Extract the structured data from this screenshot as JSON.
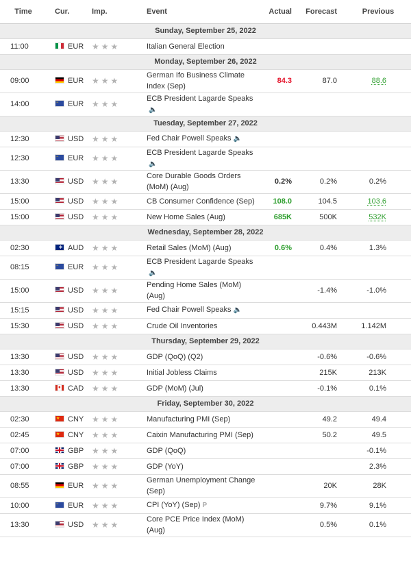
{
  "headers": {
    "time": "Time",
    "currency": "Cur.",
    "importance": "Imp.",
    "event": "Event",
    "actual": "Actual",
    "forecast": "Forecast",
    "previous": "Previous"
  },
  "colors": {
    "positive": "#2e9e2e",
    "negative": "#e4132a",
    "day_header_bg": "#ededed"
  },
  "importance_glyphs": "★★★",
  "speech_icon": "🔈",
  "preliminary_icon": "P",
  "days": [
    {
      "date": "Sunday, September 25, 2022",
      "events": [
        {
          "time": "11:00",
          "flag": "it",
          "currency": "EUR",
          "event": "Italian General Election",
          "actual": "",
          "forecast": "",
          "previous": ""
        }
      ]
    },
    {
      "date": "Monday, September 26, 2022",
      "events": [
        {
          "time": "09:00",
          "flag": "de",
          "currency": "EUR",
          "event": "German Ifo Business Climate Index (Sep)",
          "actual": "84.3",
          "actual_color": "red",
          "forecast": "87.0",
          "previous": "88.6",
          "previous_color": "green",
          "previous_revised": true
        },
        {
          "time": "14:00",
          "flag": "eu",
          "currency": "EUR",
          "event": "ECB President Lagarde Speaks",
          "speech": true,
          "actual": "",
          "forecast": "",
          "previous": ""
        }
      ]
    },
    {
      "date": "Tuesday, September 27, 2022",
      "events": [
        {
          "time": "12:30",
          "flag": "us",
          "currency": "USD",
          "event": "Fed Chair Powell Speaks",
          "speech": true,
          "actual": "",
          "forecast": "",
          "previous": ""
        },
        {
          "time": "12:30",
          "flag": "eu",
          "currency": "EUR",
          "event": "ECB President Lagarde Speaks",
          "speech": true,
          "actual": "",
          "forecast": "",
          "previous": ""
        },
        {
          "time": "13:30",
          "flag": "us",
          "currency": "USD",
          "event": "Core Durable Goods Orders (MoM) (Aug)",
          "actual": "0.2%",
          "forecast": "0.2%",
          "previous": "0.2%"
        },
        {
          "time": "15:00",
          "flag": "us",
          "currency": "USD",
          "event": "CB Consumer Confidence (Sep)",
          "actual": "108.0",
          "actual_color": "green",
          "forecast": "104.5",
          "previous": "103.6",
          "previous_color": "green",
          "previous_revised": true
        },
        {
          "time": "15:00",
          "flag": "us",
          "currency": "USD",
          "event": "New Home Sales (Aug)",
          "actual": "685K",
          "actual_color": "green",
          "forecast": "500K",
          "previous": "532K",
          "previous_color": "green",
          "previous_revised": true
        }
      ]
    },
    {
      "date": "Wednesday, September 28, 2022",
      "events": [
        {
          "time": "02:30",
          "flag": "au",
          "currency": "AUD",
          "event": "Retail Sales (MoM) (Aug)",
          "actual": "0.6%",
          "actual_color": "green",
          "forecast": "0.4%",
          "previous": "1.3%"
        },
        {
          "time": "08:15",
          "flag": "eu",
          "currency": "EUR",
          "event": "ECB President Lagarde Speaks",
          "speech": true,
          "actual": "",
          "forecast": "",
          "previous": ""
        },
        {
          "time": "15:00",
          "flag": "us",
          "currency": "USD",
          "event": "Pending Home Sales (MoM) (Aug)",
          "actual": "",
          "forecast": "-1.4%",
          "previous": "-1.0%"
        },
        {
          "time": "15:15",
          "flag": "us",
          "currency": "USD",
          "event": "Fed Chair Powell Speaks",
          "speech": true,
          "actual": "",
          "forecast": "",
          "previous": ""
        },
        {
          "time": "15:30",
          "flag": "us",
          "currency": "USD",
          "event": "Crude Oil Inventories",
          "actual": "",
          "forecast": "0.443M",
          "previous": "1.142M"
        }
      ]
    },
    {
      "date": "Thursday, September 29, 2022",
      "events": [
        {
          "time": "13:30",
          "flag": "us",
          "currency": "USD",
          "event": "GDP (QoQ) (Q2)",
          "actual": "",
          "forecast": "-0.6%",
          "previous": "-0.6%"
        },
        {
          "time": "13:30",
          "flag": "us",
          "currency": "USD",
          "event": "Initial Jobless Claims",
          "actual": "",
          "forecast": "215K",
          "previous": "213K"
        },
        {
          "time": "13:30",
          "flag": "ca",
          "currency": "CAD",
          "event": "GDP (MoM) (Jul)",
          "actual": "",
          "forecast": "-0.1%",
          "previous": "0.1%"
        }
      ]
    },
    {
      "date": "Friday, September 30, 2022",
      "events": [
        {
          "time": "02:30",
          "flag": "cn",
          "currency": "CNY",
          "event": "Manufacturing PMI (Sep)",
          "actual": "",
          "forecast": "49.2",
          "previous": "49.4"
        },
        {
          "time": "02:45",
          "flag": "cn",
          "currency": "CNY",
          "event": "Caixin Manufacturing PMI (Sep)",
          "actual": "",
          "forecast": "50.2",
          "previous": "49.5"
        },
        {
          "time": "07:00",
          "flag": "gb",
          "currency": "GBP",
          "event": "GDP (QoQ)",
          "actual": "",
          "forecast": "",
          "previous": "-0.1%"
        },
        {
          "time": "07:00",
          "flag": "gb",
          "currency": "GBP",
          "event": "GDP (YoY)",
          "actual": "",
          "forecast": "",
          "previous": "2.3%"
        },
        {
          "time": "08:55",
          "flag": "de",
          "currency": "EUR",
          "event": "German Unemployment Change (Sep)",
          "actual": "",
          "forecast": "20K",
          "previous": "28K"
        },
        {
          "time": "10:00",
          "flag": "eu",
          "currency": "EUR",
          "event": "CPI (YoY) (Sep)",
          "preliminary": true,
          "actual": "",
          "forecast": "9.7%",
          "previous": "9.1%"
        },
        {
          "time": "13:30",
          "flag": "us",
          "currency": "USD",
          "event": "Core PCE Price Index (MoM) (Aug)",
          "actual": "",
          "forecast": "0.5%",
          "previous": "0.1%"
        }
      ]
    }
  ]
}
